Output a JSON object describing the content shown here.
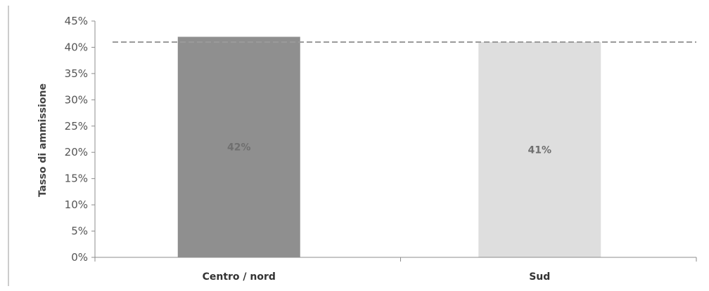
{
  "chart_data": {
    "type": "bar",
    "title": "",
    "xlabel": "",
    "ylabel": "Tasso di ammissione",
    "categories": [
      "Centro / nord",
      "Sud"
    ],
    "values": [
      0.42,
      0.41
    ],
    "data_labels": [
      "42%",
      "41%"
    ],
    "yticks": [
      "0%",
      "5%",
      "10%",
      "15%",
      "20%",
      "25%",
      "30%",
      "35%",
      "40%",
      "45%"
    ],
    "ylim": [
      0,
      0.45
    ],
    "reference_line": 0.41,
    "grid": false,
    "legend": "none",
    "bar_colors": [
      "#8f8f8f",
      "#dedede"
    ],
    "reference_line_color": "#9a9a9a"
  }
}
